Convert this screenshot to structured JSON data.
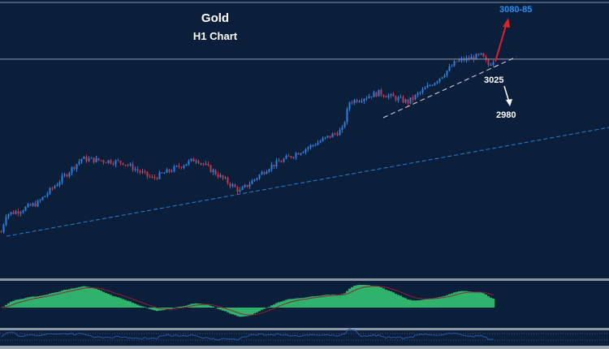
{
  "chart_data": {
    "type": "candlestick",
    "title": "Gold",
    "subtitle": "H1 Chart",
    "price_keypoints": [
      [
        0,
        2900
      ],
      [
        2,
        2915
      ],
      [
        7,
        2918
      ],
      [
        15,
        2925
      ],
      [
        33,
        2963
      ],
      [
        50,
        2960
      ],
      [
        62,
        2946
      ],
      [
        80,
        2963
      ],
      [
        98,
        2935
      ],
      [
        110,
        2956
      ],
      [
        127,
        2974
      ],
      [
        140,
        2988
      ],
      [
        143,
        3012
      ],
      [
        155,
        3020
      ],
      [
        167,
        3012
      ],
      [
        180,
        3033
      ],
      [
        187,
        3047
      ],
      [
        197,
        3052
      ],
      [
        200,
        3044
      ],
      [
        202,
        3048
      ]
    ],
    "ylim": [
      2862,
      3100
    ],
    "resistance_level": 3049,
    "annotations": {
      "target_up": "3080-85",
      "support": "3025",
      "target_down": "2980"
    },
    "colors": {
      "bull": "#2f7fe0",
      "bear": "#c0394b",
      "target_up": "#2d8cf0",
      "up_arrow": "#e0202a",
      "macd": "#2fb36a",
      "signal": "#8b2335"
    }
  }
}
